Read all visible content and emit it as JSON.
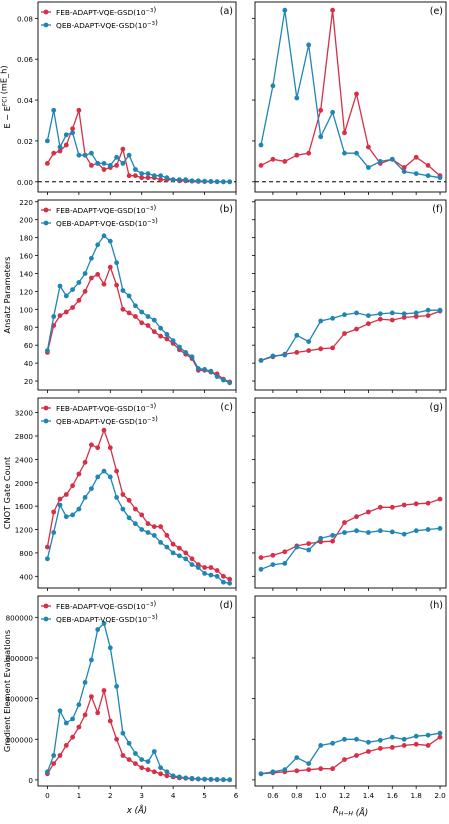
{
  "colors": {
    "feb": "#d62f47",
    "qeb": "#1f86b4"
  },
  "shared_x_label": "x (Å)",
  "shared_r_label": "R_{H−H} (Å)",
  "chart_data": [
    {
      "id": "a",
      "panel_label": "(a)",
      "type": "line",
      "ylabel": "E − E^{FCI} (mE_h)",
      "ylim": [
        -0.005,
        0.088
      ],
      "xlim": [
        -0.3,
        6.0
      ],
      "yticks": [
        "0.00",
        "0.02",
        "0.04",
        "0.06",
        "0.08"
      ],
      "ytick_values": [
        0,
        0.02,
        0.04,
        0.06,
        0.08
      ],
      "xticks": [
        "0",
        "1",
        "2",
        "3",
        "4",
        "5",
        "6"
      ],
      "reference_line": 0,
      "legend": "upper-left",
      "series": [
        {
          "name": "FEB-ADAPT-VQE-GSD(10^{−3})",
          "color": "feb",
          "x": [
            0,
            0.2,
            0.4,
            0.6,
            0.8,
            1.0,
            1.2,
            1.4,
            1.6,
            1.8,
            2.0,
            2.2,
            2.4,
            2.6,
            2.8,
            3.0,
            3.2,
            3.4,
            3.6,
            3.8,
            4.0,
            4.2,
            4.4,
            4.6,
            4.8,
            5.0,
            5.2,
            5.4,
            5.6,
            5.8
          ],
          "y": [
            0.009,
            0.014,
            0.015,
            0.018,
            0.026,
            0.035,
            0.013,
            0.008,
            0.009,
            0.006,
            0.007,
            0.008,
            0.016,
            0.003,
            0.003,
            0.002,
            0.002,
            0.002,
            0.001,
            0.001,
            0.001,
            0.0005,
            0.0005,
            0.0003,
            0.0002,
            0.0001,
            0.0001,
            0,
            0,
            0
          ]
        },
        {
          "name": "QEB-ADAPT-VQE-GSD(10^{−3})",
          "color": "qeb",
          "x": [
            0,
            0.2,
            0.4,
            0.6,
            0.8,
            1.0,
            1.2,
            1.4,
            1.6,
            1.8,
            2.0,
            2.2,
            2.4,
            2.6,
            2.8,
            3.0,
            3.2,
            3.4,
            3.6,
            3.8,
            4.0,
            4.2,
            4.4,
            4.6,
            4.8,
            5.0,
            5.2,
            5.4,
            5.6,
            5.8
          ],
          "y": [
            0.02,
            0.035,
            0.017,
            0.023,
            0.024,
            0.013,
            0.013,
            0.014,
            0.009,
            0.009,
            0.008,
            0.012,
            0.009,
            0.013,
            0.006,
            0.004,
            0.004,
            0.003,
            0.003,
            0.002,
            0.001,
            0.001,
            0.001,
            0.0005,
            0.0005,
            0.0003,
            0.0002,
            0.0001,
            0,
            0
          ]
        }
      ]
    },
    {
      "id": "b",
      "panel_label": "(b)",
      "type": "line",
      "ylabel": "Ansatz Parameters",
      "ylim": [
        10,
        222
      ],
      "xlim": [
        -0.3,
        6.0
      ],
      "yticks": [
        "20",
        "40",
        "60",
        "80",
        "100",
        "120",
        "140",
        "160",
        "180",
        "200",
        "220"
      ],
      "ytick_values": [
        20,
        40,
        60,
        80,
        100,
        120,
        140,
        160,
        180,
        200,
        220
      ],
      "xticks": [
        "0",
        "1",
        "2",
        "3",
        "4",
        "5",
        "6"
      ],
      "legend": "upper-left",
      "series": [
        {
          "name": "FEB-ADAPT-VQE-GSD(10^{−3})",
          "color": "feb",
          "x": [
            0,
            0.2,
            0.4,
            0.6,
            0.8,
            1.0,
            1.2,
            1.4,
            1.6,
            1.8,
            2.0,
            2.2,
            2.4,
            2.6,
            2.8,
            3.0,
            3.2,
            3.4,
            3.6,
            3.8,
            4.0,
            4.2,
            4.4,
            4.6,
            4.8,
            5.0,
            5.2,
            5.4,
            5.6,
            5.8
          ],
          "y": [
            52,
            82,
            93,
            97,
            102,
            110,
            120,
            135,
            139,
            128,
            147,
            127,
            100,
            96,
            92,
            85,
            82,
            75,
            70,
            67,
            62,
            55,
            50,
            45,
            32,
            32,
            30,
            28,
            22,
            19
          ]
        },
        {
          "name": "QEB-ADAPT-VQE-GSD(10^{−3})",
          "color": "qeb",
          "x": [
            0,
            0.2,
            0.4,
            0.6,
            0.8,
            1.0,
            1.2,
            1.4,
            1.6,
            1.8,
            2.0,
            2.2,
            2.4,
            2.6,
            2.8,
            3.0,
            3.2,
            3.4,
            3.6,
            3.8,
            4.0,
            4.2,
            4.4,
            4.6,
            4.8,
            5.0,
            5.2,
            5.4,
            5.6,
            5.8
          ],
          "y": [
            54,
            92,
            126,
            115,
            122,
            130,
            140,
            157,
            172,
            182,
            176,
            152,
            121,
            115,
            104,
            97,
            92,
            88,
            79,
            72,
            65,
            58,
            52,
            47,
            34,
            33,
            31,
            25,
            21,
            18
          ]
        }
      ]
    },
    {
      "id": "c",
      "panel_label": "(c)",
      "type": "line",
      "ylabel": "CNOT Gate Count",
      "ylim": [
        200,
        3450
      ],
      "xlim": [
        -0.3,
        6.0
      ],
      "yticks": [
        "400",
        "800",
        "1200",
        "1600",
        "2000",
        "2400",
        "2800",
        "3200"
      ],
      "ytick_values": [
        400,
        800,
        1200,
        1600,
        2000,
        2400,
        2800,
        3200
      ],
      "xticks": [
        "0",
        "1",
        "2",
        "3",
        "4",
        "5",
        "6"
      ],
      "legend": "upper-left",
      "series": [
        {
          "name": "FEB-ADAPT-VQE-GSD(10^{−3})",
          "color": "feb",
          "x": [
            0,
            0.2,
            0.4,
            0.6,
            0.8,
            1.0,
            1.2,
            1.4,
            1.6,
            1.8,
            2.0,
            2.2,
            2.4,
            2.6,
            2.8,
            3.0,
            3.2,
            3.4,
            3.6,
            3.8,
            4.0,
            4.2,
            4.4,
            4.6,
            4.8,
            5.0,
            5.2,
            5.4,
            5.6,
            5.8
          ],
          "y": [
            900,
            1500,
            1720,
            1800,
            1950,
            2150,
            2350,
            2650,
            2600,
            2900,
            2600,
            2200,
            1800,
            1700,
            1550,
            1450,
            1300,
            1250,
            1250,
            1100,
            950,
            880,
            800,
            700,
            600,
            550,
            550,
            500,
            400,
            350
          ]
        },
        {
          "name": "QEB-ADAPT-VQE-GSD(10^{−3})",
          "color": "qeb",
          "x": [
            0,
            0.2,
            0.4,
            0.6,
            0.8,
            1.0,
            1.2,
            1.4,
            1.6,
            1.8,
            2.0,
            2.2,
            2.4,
            2.6,
            2.8,
            3.0,
            3.2,
            3.4,
            3.6,
            3.8,
            4.0,
            4.2,
            4.4,
            4.6,
            4.8,
            5.0,
            5.2,
            5.4,
            5.6,
            5.8
          ],
          "y": [
            700,
            1150,
            1620,
            1420,
            1450,
            1550,
            1750,
            1900,
            2100,
            2200,
            2100,
            1750,
            1550,
            1400,
            1300,
            1200,
            1150,
            1100,
            980,
            900,
            800,
            750,
            700,
            600,
            550,
            450,
            420,
            400,
            300,
            280
          ]
        }
      ]
    },
    {
      "id": "d",
      "panel_label": "(d)",
      "type": "line",
      "ylabel": "Gradient Element Evaluations",
      "ylim": [
        -30000,
        905000
      ],
      "xlim": [
        -0.3,
        6.0
      ],
      "yticks": [
        "0",
        "200000",
        "400000",
        "600000",
        "800000"
      ],
      "ytick_values": [
        0,
        200000,
        400000,
        600000,
        800000
      ],
      "xticks": [
        "0",
        "1",
        "2",
        "3",
        "4",
        "5",
        "6"
      ],
      "xlabel_ref": "shared_x_label",
      "legend": "upper-left",
      "series": [
        {
          "name": "FEB-ADAPT-VQE-GSD(10^{−3})",
          "color": "feb",
          "x": [
            0,
            0.2,
            0.4,
            0.6,
            0.8,
            1.0,
            1.2,
            1.4,
            1.6,
            1.8,
            2.0,
            2.2,
            2.4,
            2.6,
            2.8,
            3.0,
            3.2,
            3.4,
            3.6,
            3.8,
            4.0,
            4.2,
            4.4,
            4.6,
            4.8,
            5.0,
            5.2,
            5.4,
            5.6,
            5.8
          ],
          "y": [
            30000,
            80000,
            120000,
            170000,
            210000,
            260000,
            320000,
            410000,
            330000,
            440000,
            290000,
            200000,
            120000,
            100000,
            80000,
            60000,
            50000,
            40000,
            30000,
            20000,
            15000,
            10000,
            8000,
            5000,
            4000,
            3000,
            2000,
            1000,
            1000,
            500
          ]
        },
        {
          "name": "QEB-ADAPT-VQE-GSD(10^{−3})",
          "color": "qeb",
          "x": [
            0,
            0.2,
            0.4,
            0.6,
            0.8,
            1.0,
            1.2,
            1.4,
            1.6,
            1.8,
            2.0,
            2.2,
            2.4,
            2.6,
            2.8,
            3.0,
            3.2,
            3.4,
            3.6,
            3.8,
            4.0,
            4.2,
            4.4,
            4.6,
            4.8,
            5.0,
            5.2,
            5.4,
            5.6,
            5.8
          ],
          "y": [
            40000,
            120000,
            340000,
            280000,
            300000,
            370000,
            480000,
            590000,
            740000,
            770000,
            650000,
            460000,
            230000,
            180000,
            130000,
            100000,
            90000,
            140000,
            60000,
            40000,
            20000,
            15000,
            10000,
            8000,
            5000,
            4000,
            3000,
            2000,
            1000,
            1000
          ]
        }
      ]
    },
    {
      "id": "e",
      "panel_label": "(e)",
      "type": "line",
      "ylim": [
        -0.005,
        0.088
      ],
      "xlim": [
        0.45,
        2.05
      ],
      "ytick_values": [
        0,
        0.02,
        0.04,
        0.06,
        0.08
      ],
      "xticks": [
        "0.6",
        "0.8",
        "1.0",
        "1.2",
        "1.4",
        "1.6",
        "1.8",
        "2.0"
      ],
      "reference_line": 0,
      "series": [
        {
          "name": "",
          "color": "feb",
          "x": [
            0.5,
            0.6,
            0.7,
            0.8,
            0.9,
            1.0,
            1.1,
            1.2,
            1.3,
            1.4,
            1.5,
            1.6,
            1.7,
            1.8,
            1.9,
            2.0
          ],
          "y": [
            0.008,
            0.011,
            0.01,
            0.013,
            0.014,
            0.035,
            0.084,
            0.024,
            0.043,
            0.017,
            0.009,
            0.011,
            0.007,
            0.012,
            0.008,
            0.003
          ]
        },
        {
          "name": "",
          "color": "qeb",
          "x": [
            0.5,
            0.6,
            0.7,
            0.8,
            0.9,
            1.0,
            1.1,
            1.2,
            1.3,
            1.4,
            1.5,
            1.6,
            1.7,
            1.8,
            1.9,
            2.0
          ],
          "y": [
            0.018,
            0.047,
            0.084,
            0.041,
            0.067,
            0.022,
            0.034,
            0.014,
            0.014,
            0.007,
            0.01,
            0.011,
            0.005,
            0.004,
            0.003,
            0.002
          ]
        }
      ]
    },
    {
      "id": "f",
      "panel_label": "(f)",
      "type": "line",
      "ylim": [
        10,
        222
      ],
      "xlim": [
        0.45,
        2.05
      ],
      "ytick_values": [
        20,
        40,
        60,
        80,
        100,
        120,
        140,
        160,
        180,
        200,
        220
      ],
      "xticks": [
        "0.6",
        "0.8",
        "1.0",
        "1.2",
        "1.4",
        "1.6",
        "1.8",
        "2.0"
      ],
      "series": [
        {
          "name": "",
          "color": "feb",
          "x": [
            0.5,
            0.6,
            0.7,
            0.8,
            0.9,
            1.0,
            1.1,
            1.2,
            1.3,
            1.4,
            1.5,
            1.6,
            1.7,
            1.8,
            1.9,
            2.0
          ],
          "y": [
            43,
            47,
            50,
            52,
            54,
            56,
            57,
            73,
            78,
            84,
            89,
            88,
            91,
            92,
            93,
            98
          ]
        },
        {
          "name": "",
          "color": "qeb",
          "x": [
            0.5,
            0.6,
            0.7,
            0.8,
            0.9,
            1.0,
            1.1,
            1.2,
            1.3,
            1.4,
            1.5,
            1.6,
            1.7,
            1.8,
            1.9,
            2.0
          ],
          "y": [
            43,
            48,
            49,
            71,
            64,
            87,
            90,
            94,
            96,
            93,
            95,
            96,
            95,
            96,
            99,
            99
          ]
        }
      ]
    },
    {
      "id": "g",
      "panel_label": "(g)",
      "type": "line",
      "ylim": [
        200,
        3450
      ],
      "xlim": [
        0.45,
        2.05
      ],
      "ytick_values": [
        400,
        800,
        1200,
        1600,
        2000,
        2400,
        2800,
        3200
      ],
      "xticks": [
        "0.6",
        "0.8",
        "1.0",
        "1.2",
        "1.4",
        "1.6",
        "1.8",
        "2.0"
      ],
      "series": [
        {
          "name": "",
          "color": "feb",
          "x": [
            0.5,
            0.6,
            0.7,
            0.8,
            0.9,
            1.0,
            1.1,
            1.2,
            1.3,
            1.4,
            1.5,
            1.6,
            1.7,
            1.8,
            1.9,
            2.0
          ],
          "y": [
            720,
            760,
            820,
            920,
            960,
            990,
            1000,
            1320,
            1420,
            1500,
            1580,
            1580,
            1620,
            1640,
            1650,
            1720
          ]
        },
        {
          "name": "",
          "color": "qeb",
          "x": [
            0.5,
            0.6,
            0.7,
            0.8,
            0.9,
            1.0,
            1.1,
            1.2,
            1.3,
            1.4,
            1.5,
            1.6,
            1.7,
            1.8,
            1.9,
            2.0
          ],
          "y": [
            520,
            600,
            620,
            900,
            850,
            1050,
            1100,
            1150,
            1180,
            1150,
            1180,
            1160,
            1120,
            1180,
            1200,
            1220
          ]
        }
      ]
    },
    {
      "id": "h",
      "panel_label": "(h)",
      "type": "line",
      "ylim": [
        -30000,
        905000
      ],
      "xlim": [
        0.45,
        2.05
      ],
      "ytick_values": [
        0,
        200000,
        400000,
        600000,
        800000
      ],
      "xticks": [
        "0.6",
        "0.8",
        "1.0",
        "1.2",
        "1.4",
        "1.6",
        "1.8",
        "2.0"
      ],
      "xlabel_ref": "shared_r_label",
      "series": [
        {
          "name": "",
          "color": "feb",
          "x": [
            0.5,
            0.6,
            0.7,
            0.8,
            0.9,
            1.0,
            1.1,
            1.2,
            1.3,
            1.4,
            1.5,
            1.6,
            1.7,
            1.8,
            1.9,
            2.0
          ],
          "y": [
            30000,
            35000,
            40000,
            45000,
            50000,
            55000,
            55000,
            100000,
            120000,
            140000,
            155000,
            160000,
            170000,
            175000,
            170000,
            210000
          ]
        },
        {
          "name": "",
          "color": "qeb",
          "x": [
            0.5,
            0.6,
            0.7,
            0.8,
            0.9,
            1.0,
            1.1,
            1.2,
            1.3,
            1.4,
            1.5,
            1.6,
            1.7,
            1.8,
            1.9,
            2.0
          ],
          "y": [
            30000,
            40000,
            50000,
            110000,
            80000,
            170000,
            180000,
            200000,
            200000,
            185000,
            195000,
            210000,
            200000,
            215000,
            220000,
            230000
          ]
        }
      ]
    }
  ]
}
